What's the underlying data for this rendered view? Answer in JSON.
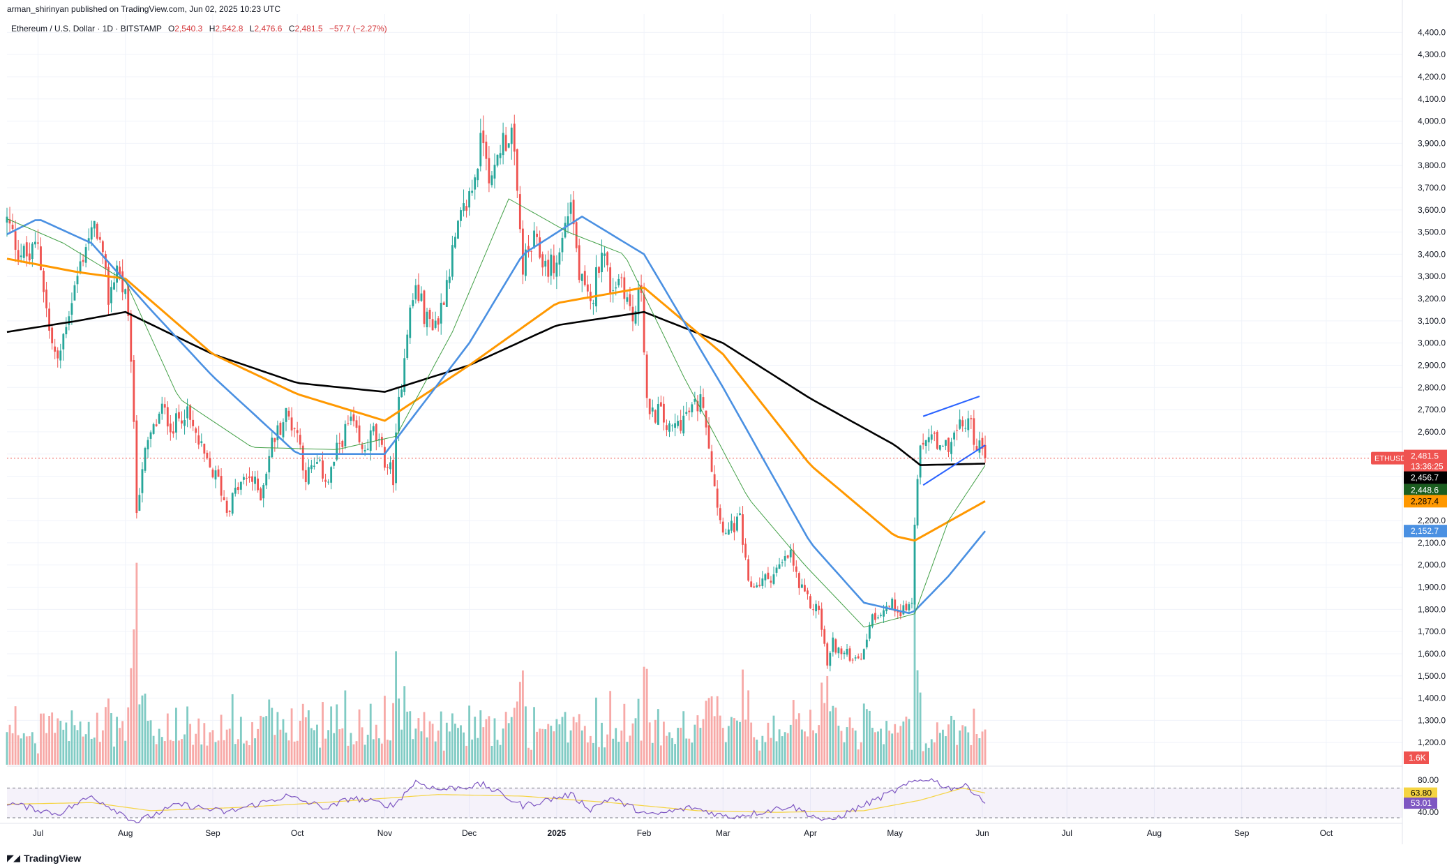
{
  "header": {
    "publisher_line": "arman_shirinyan published on TradingView.com, Jun 02, 2025 10:23 UTC",
    "symbol_name": "Ethereum / U.S. Dollar · 1D · BITSTAMP",
    "ohlc": [
      {
        "k": "O",
        "v": "2,540.3"
      },
      {
        "k": "H",
        "v": "2,542.8"
      },
      {
        "k": "L",
        "v": "2,476.6"
      },
      {
        "k": "C",
        "v": "2,481.5"
      },
      {
        "k": "",
        "v": "−57.7 (−2.27%)"
      }
    ]
  },
  "footer": {
    "logo_text": "TradingView"
  },
  "colors": {
    "up": "#26a69a",
    "down": "#ef5350",
    "up_vol": "#80cbc4",
    "down_vol": "#f7a9a7",
    "ma_black": "#000000",
    "ma_orange": "#ff9800",
    "ma_blue": "#4a90e2",
    "ma_green": "#43a047",
    "trendline": "#2962ff",
    "rsi": "#7e57c2",
    "rsi_ma": "#f5d442"
  },
  "chart_data": [
    {
      "type": "candlestick",
      "symbol": "ETHUSD",
      "interval": "1D",
      "x_tick_labels": [
        "Jul",
        "Aug",
        "Sep",
        "Oct",
        "Nov",
        "Dec",
        "2025",
        "Feb",
        "Mar",
        "Apr",
        "May",
        "Jun",
        "Jul",
        "Aug",
        "Sep",
        "Oct"
      ],
      "y_tick_labels": [
        "4,400.0",
        "4,300.0",
        "4,200.0",
        "4,100.0",
        "4,000.0",
        "3,900.0",
        "3,800.0",
        "3,700.0",
        "3,600.0",
        "3,500.0",
        "3,400.0",
        "3,300.0",
        "3,200.0",
        "3,100.0",
        "3,000.0",
        "2,900.0",
        "2,800.0",
        "2,700.0",
        "2,600.0",
        "2,500.0",
        "2,400.0",
        "2,300.0",
        "2,200.0",
        "2,100.0",
        "2,000.0",
        "1,900.0",
        "1,800.0",
        "1,700.0",
        "1,600.0",
        "1,500.0",
        "1,400.0",
        "1,300.0",
        "1,200.0"
      ],
      "ylim": [
        1100,
        4420
      ],
      "price_path": [
        [
          "2024-06-20",
          3550
        ],
        [
          "2024-06-24",
          3420
        ],
        [
          "2024-06-28",
          3380
        ],
        [
          "2024-07-01",
          3460
        ],
        [
          "2024-07-05",
          3050
        ],
        [
          "2024-07-08",
          2900
        ],
        [
          "2024-07-11",
          3100
        ],
        [
          "2024-07-15",
          3300
        ],
        [
          "2024-07-18",
          3450
        ],
        [
          "2024-07-22",
          3520
        ],
        [
          "2024-07-26",
          3200
        ],
        [
          "2024-07-29",
          3350
        ],
        [
          "2024-08-01",
          3200
        ],
        [
          "2024-08-03",
          2950
        ],
        [
          "2024-08-05",
          2250
        ],
        [
          "2024-08-07",
          2450
        ],
        [
          "2024-08-10",
          2580
        ],
        [
          "2024-08-14",
          2700
        ],
        [
          "2024-08-18",
          2620
        ],
        [
          "2024-08-22",
          2700
        ],
        [
          "2024-08-26",
          2580
        ],
        [
          "2024-08-30",
          2450
        ],
        [
          "2024-09-03",
          2380
        ],
        [
          "2024-09-06",
          2250
        ],
        [
          "2024-09-10",
          2350
        ],
        [
          "2024-09-14",
          2400
        ],
        [
          "2024-09-18",
          2320
        ],
        [
          "2024-09-22",
          2550
        ],
        [
          "2024-09-27",
          2680
        ],
        [
          "2024-10-01",
          2600
        ],
        [
          "2024-10-04",
          2400
        ],
        [
          "2024-10-08",
          2450
        ],
        [
          "2024-10-12",
          2380
        ],
        [
          "2024-10-16",
          2550
        ],
        [
          "2024-10-20",
          2650
        ],
        [
          "2024-10-24",
          2500
        ],
        [
          "2024-10-28",
          2600
        ],
        [
          "2024-10-31",
          2500
        ],
        [
          "2024-11-04",
          2400
        ],
        [
          "2024-11-06",
          2720
        ],
        [
          "2024-11-09",
          3080
        ],
        [
          "2024-11-12",
          3250
        ],
        [
          "2024-11-16",
          3100
        ],
        [
          "2024-11-20",
          3100
        ],
        [
          "2024-11-24",
          3350
        ],
        [
          "2024-11-28",
          3550
        ],
        [
          "2024-12-02",
          3700
        ],
        [
          "2024-12-06",
          3950
        ],
        [
          "2024-12-09",
          3700
        ],
        [
          "2024-12-12",
          3900
        ],
        [
          "2024-12-16",
          3950
        ],
        [
          "2024-12-18",
          3650
        ],
        [
          "2024-12-20",
          3350
        ],
        [
          "2024-12-24",
          3450
        ],
        [
          "2024-12-28",
          3350
        ],
        [
          "2025-01-01",
          3350
        ],
        [
          "2025-01-06",
          3650
        ],
        [
          "2025-01-09",
          3300
        ],
        [
          "2025-01-13",
          3150
        ],
        [
          "2025-01-17",
          3450
        ],
        [
          "2025-01-20",
          3250
        ],
        [
          "2025-01-24",
          3300
        ],
        [
          "2025-01-28",
          3100
        ],
        [
          "2025-01-31",
          3250
        ],
        [
          "2025-02-02",
          2750
        ],
        [
          "2025-02-03",
          2650
        ],
        [
          "2025-02-06",
          2700
        ],
        [
          "2025-02-10",
          2600
        ],
        [
          "2025-02-14",
          2650
        ],
        [
          "2025-02-18",
          2700
        ],
        [
          "2025-02-22",
          2750
        ],
        [
          "2025-02-25",
          2450
        ],
        [
          "2025-02-28",
          2200
        ],
        [
          "2025-03-03",
          2150
        ],
        [
          "2025-03-07",
          2200
        ],
        [
          "2025-03-10",
          1900
        ],
        [
          "2025-03-14",
          1920
        ],
        [
          "2025-03-18",
          1950
        ],
        [
          "2025-03-22",
          2000
        ],
        [
          "2025-03-25",
          2050
        ],
        [
          "2025-03-28",
          1900
        ],
        [
          "2025-04-01",
          1820
        ],
        [
          "2025-04-04",
          1800
        ],
        [
          "2025-04-07",
          1550
        ],
        [
          "2025-04-09",
          1650
        ],
        [
          "2025-04-12",
          1600
        ],
        [
          "2025-04-16",
          1590
        ],
        [
          "2025-04-20",
          1600
        ],
        [
          "2025-04-22",
          1750
        ],
        [
          "2025-04-26",
          1800
        ],
        [
          "2025-04-30",
          1820
        ],
        [
          "2025-05-03",
          1800
        ],
        [
          "2025-05-07",
          1820
        ],
        [
          "2025-05-08",
          2200
        ],
        [
          "2025-05-10",
          2500
        ],
        [
          "2025-05-13",
          2600
        ],
        [
          "2025-05-17",
          2500
        ],
        [
          "2025-05-20",
          2550
        ],
        [
          "2025-05-23",
          2600
        ],
        [
          "2025-05-27",
          2650
        ],
        [
          "2025-05-30",
          2550
        ],
        [
          "2025-06-02",
          2481.5
        ]
      ],
      "moving_averages": [
        {
          "color": "black",
          "path": [
            [
              "2024-06-20",
              3050
            ],
            [
              "2024-07-15",
              3100
            ],
            [
              "2024-08-01",
              3140
            ],
            [
              "2024-09-01",
              2950
            ],
            [
              "2024-10-01",
              2820
            ],
            [
              "2024-11-01",
              2780
            ],
            [
              "2024-12-01",
              2900
            ],
            [
              "2025-01-01",
              3080
            ],
            [
              "2025-02-01",
              3140
            ],
            [
              "2025-03-01",
              3000
            ],
            [
              "2025-04-01",
              2750
            ],
            [
              "2025-05-01",
              2540
            ],
            [
              "2025-05-10",
              2450
            ],
            [
              "2025-06-02",
              2456.7
            ]
          ]
        },
        {
          "color": "orange",
          "path": [
            [
              "2024-06-20",
              3380
            ],
            [
              "2024-07-15",
              3320
            ],
            [
              "2024-08-01",
              3290
            ],
            [
              "2024-09-01",
              2950
            ],
            [
              "2024-10-01",
              2770
            ],
            [
              "2024-11-01",
              2650
            ],
            [
              "2024-12-01",
              2900
            ],
            [
              "2025-01-01",
              3180
            ],
            [
              "2025-02-01",
              3250
            ],
            [
              "2025-03-01",
              2950
            ],
            [
              "2025-04-01",
              2450
            ],
            [
              "2025-05-01",
              2130
            ],
            [
              "2025-05-08",
              2110
            ],
            [
              "2025-06-02",
              2287.4
            ]
          ]
        },
        {
          "color": "blue",
          "path": [
            [
              "2024-06-20",
              3490
            ],
            [
              "2024-07-01",
              3560
            ],
            [
              "2024-07-20",
              3450
            ],
            [
              "2024-08-10",
              3150
            ],
            [
              "2024-09-01",
              2850
            ],
            [
              "2024-10-01",
              2500
            ],
            [
              "2024-11-01",
              2500
            ],
            [
              "2024-12-01",
              3000
            ],
            [
              "2024-12-20",
              3400
            ],
            [
              "2025-01-10",
              3570
            ],
            [
              "2025-02-01",
              3400
            ],
            [
              "2025-03-01",
              2800
            ],
            [
              "2025-04-01",
              2100
            ],
            [
              "2025-04-20",
              1830
            ],
            [
              "2025-05-07",
              1780
            ],
            [
              "2025-05-20",
              1950
            ],
            [
              "2025-06-02",
              2152.7
            ]
          ]
        },
        {
          "color": "green",
          "path": [
            [
              "2024-06-20",
              3560
            ],
            [
              "2024-07-10",
              3450
            ],
            [
              "2024-08-01",
              3280
            ],
            [
              "2024-08-20",
              2750
            ],
            [
              "2024-09-15",
              2530
            ],
            [
              "2024-10-15",
              2520
            ],
            [
              "2024-11-05",
              2580
            ],
            [
              "2024-11-25",
              3050
            ],
            [
              "2024-12-15",
              3650
            ],
            [
              "2025-01-05",
              3500
            ],
            [
              "2025-01-25",
              3400
            ],
            [
              "2025-02-15",
              2850
            ],
            [
              "2025-03-10",
              2300
            ],
            [
              "2025-03-30",
              2000
            ],
            [
              "2025-04-20",
              1720
            ],
            [
              "2025-05-08",
              1780
            ],
            [
              "2025-05-20",
              2200
            ],
            [
              "2025-06-02",
              2448.6
            ]
          ]
        }
      ],
      "trendlines": [
        {
          "from": [
            "2025-05-11",
            2670
          ],
          "to": [
            "2025-05-31",
            2760
          ]
        },
        {
          "from": [
            "2025-05-11",
            2360
          ],
          "to": [
            "2025-06-02",
            2540
          ]
        }
      ],
      "current_price_label": {
        "symbol": "ETHUSD",
        "price": "2,481.5",
        "countdown": "13:36:25"
      },
      "price_labels": [
        {
          "text": "2,456.7",
          "bg": "#000000",
          "fg": "#ffffff",
          "value": 2456.7
        },
        {
          "text": "2,448.6",
          "bg": "#1b5e20",
          "fg": "#ffffff",
          "value": 2448.6
        },
        {
          "text": "2,287.4",
          "bg": "#ff9800",
          "fg": "#000000",
          "value": 2287.4
        },
        {
          "text": "2,152.7",
          "bg": "#4a90e2",
          "fg": "#ffffff",
          "value": 2152.7
        }
      ],
      "volume_label": "1.6K"
    },
    {
      "type": "line",
      "indicator": "RSI",
      "ylim": [
        35,
        85
      ],
      "y_tick_labels": [
        "80.00",
        "40.00"
      ],
      "upper_band": 70,
      "lower_band": 30,
      "rsi_label": "53.01",
      "rsi_ma_label": "63.80",
      "rsi_path": [
        [
          "2024-06-20",
          52
        ],
        [
          "2024-07-08",
          38
        ],
        [
          "2024-07-20",
          60
        ],
        [
          "2024-08-05",
          28
        ],
        [
          "2024-08-20",
          50
        ],
        [
          "2024-09-06",
          40
        ],
        [
          "2024-09-27",
          60
        ],
        [
          "2024-10-12",
          45
        ],
        [
          "2024-10-20",
          58
        ],
        [
          "2024-11-04",
          48
        ],
        [
          "2024-11-12",
          78
        ],
        [
          "2024-11-20",
          68
        ],
        [
          "2024-12-06",
          74
        ],
        [
          "2024-12-20",
          48
        ],
        [
          "2025-01-06",
          62
        ],
        [
          "2025-01-13",
          44
        ],
        [
          "2025-01-20",
          58
        ],
        [
          "2025-02-03",
          36
        ],
        [
          "2025-02-18",
          46
        ],
        [
          "2025-03-03",
          34
        ],
        [
          "2025-03-14",
          40
        ],
        [
          "2025-03-25",
          48
        ],
        [
          "2025-04-07",
          28
        ],
        [
          "2025-04-22",
          52
        ],
        [
          "2025-05-08",
          78
        ],
        [
          "2025-05-13",
          82
        ],
        [
          "2025-05-20",
          70
        ],
        [
          "2025-05-27",
          72
        ],
        [
          "2025-06-02",
          53.01
        ]
      ],
      "rsi_ma_path": [
        [
          "2024-06-20",
          50
        ],
        [
          "2024-07-20",
          52
        ],
        [
          "2024-08-10",
          42
        ],
        [
          "2024-09-10",
          46
        ],
        [
          "2024-10-10",
          52
        ],
        [
          "2024-11-20",
          62
        ],
        [
          "2024-12-20",
          60
        ],
        [
          "2025-01-20",
          52
        ],
        [
          "2025-02-20",
          42
        ],
        [
          "2025-03-20",
          40
        ],
        [
          "2025-04-20",
          42
        ],
        [
          "2025-05-10",
          55
        ],
        [
          "2025-05-25",
          70
        ],
        [
          "2025-06-02",
          63.8
        ]
      ]
    }
  ]
}
